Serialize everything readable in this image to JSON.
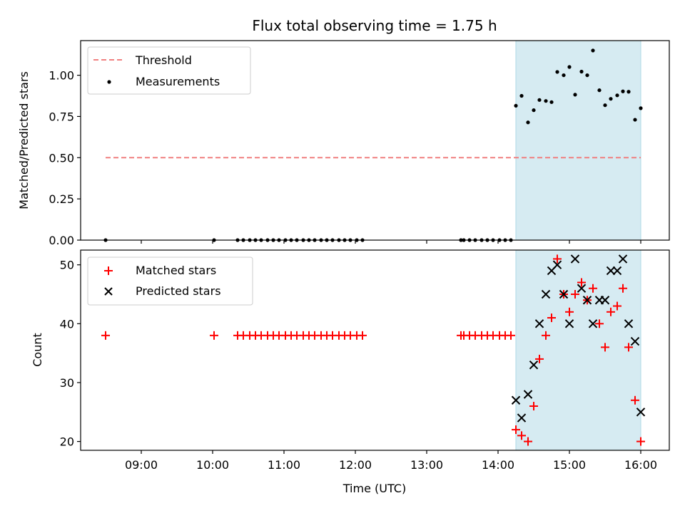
{
  "chart_data": [
    {
      "type": "scatter",
      "title": "Flux total observing time = 1.75 h",
      "xlabel": "",
      "ylabel": "Matched/Predicted stars",
      "xlim": [
        8.15,
        16.4
      ],
      "ylim": [
        0,
        1.21
      ],
      "yticks": [
        0.0,
        0.25,
        0.5,
        0.75,
        1.0
      ],
      "ytick_labels": [
        "0.00",
        "0.25",
        "0.50",
        "0.75",
        "1.00"
      ],
      "shaded_region": {
        "x_start": 14.25,
        "x_end": 16.0,
        "color": "#add8e6"
      },
      "threshold": {
        "name": "Threshold",
        "value": 0.5,
        "x_start": 8.5,
        "x_end": 16.0,
        "color": "#f08080"
      },
      "series": [
        {
          "name": "Measurements",
          "marker": "dot",
          "color": "#000000",
          "x": [
            8.5,
            10.02,
            10.35,
            10.43,
            10.52,
            10.6,
            10.68,
            10.77,
            10.85,
            10.93,
            11.02,
            11.1,
            11.18,
            11.27,
            11.35,
            11.43,
            11.52,
            11.6,
            11.68,
            11.77,
            11.85,
            11.93,
            12.02,
            12.1,
            13.48,
            13.52,
            13.6,
            13.68,
            13.77,
            13.85,
            13.93,
            14.02,
            14.1,
            14.18,
            14.25,
            14.33,
            14.42,
            14.5,
            14.58,
            14.67,
            14.75,
            14.83,
            14.92,
            15.0,
            15.08,
            15.17,
            15.25,
            15.33,
            15.42,
            15.5,
            15.58,
            15.67,
            15.75,
            15.83,
            15.92,
            16.0
          ],
          "y": [
            0,
            0,
            0,
            0,
            0,
            0,
            0,
            0,
            0,
            0,
            0,
            0,
            0,
            0,
            0,
            0,
            0,
            0,
            0,
            0,
            0,
            0,
            0,
            0,
            0,
            0,
            0,
            0,
            0,
            0,
            0,
            0,
            0,
            0,
            0.815,
            0.875,
            0.714,
            0.788,
            0.85,
            0.844,
            0.837,
            1.02,
            1.0,
            1.05,
            0.882,
            1.022,
            1.0,
            1.15,
            0.909,
            0.818,
            0.857,
            0.878,
            0.902,
            0.9,
            0.73,
            0.8
          ]
        }
      ],
      "legend": [
        "Threshold",
        "Measurements"
      ],
      "legend_position": "upper-left"
    },
    {
      "type": "scatter",
      "title": "",
      "xlabel": "Time (UTC)",
      "ylabel": "Count",
      "xlim": [
        8.15,
        16.4
      ],
      "ylim": [
        18.5,
        52.5
      ],
      "xticks": [
        9,
        10,
        11,
        12,
        13,
        14,
        15,
        16
      ],
      "xtick_labels": [
        "09:00",
        "10:00",
        "11:00",
        "12:00",
        "13:00",
        "14:00",
        "15:00",
        "16:00"
      ],
      "yticks": [
        20,
        30,
        40,
        50
      ],
      "ytick_labels": [
        "20",
        "30",
        "40",
        "50"
      ],
      "shaded_region": {
        "x_start": 14.25,
        "x_end": 16.0,
        "color": "#add8e6"
      },
      "series": [
        {
          "name": "Matched stars",
          "marker": "plus",
          "color": "#ff0000",
          "x": [
            8.5,
            10.02,
            10.35,
            10.43,
            10.52,
            10.6,
            10.68,
            10.77,
            10.85,
            10.93,
            11.02,
            11.1,
            11.18,
            11.27,
            11.35,
            11.43,
            11.52,
            11.6,
            11.68,
            11.77,
            11.85,
            11.93,
            12.02,
            12.1,
            13.48,
            13.52,
            13.6,
            13.68,
            13.77,
            13.85,
            13.93,
            14.02,
            14.1,
            14.18,
            14.25,
            14.33,
            14.42,
            14.5,
            14.58,
            14.67,
            14.75,
            14.83,
            14.92,
            15.0,
            15.08,
            15.17,
            15.25,
            15.33,
            15.42,
            15.5,
            15.58,
            15.67,
            15.75,
            15.83,
            15.92,
            16.0
          ],
          "y": [
            38,
            38,
            38,
            38,
            38,
            38,
            38,
            38,
            38,
            38,
            38,
            38,
            38,
            38,
            38,
            38,
            38,
            38,
            38,
            38,
            38,
            38,
            38,
            38,
            38,
            38,
            38,
            38,
            38,
            38,
            38,
            38,
            38,
            38,
            22,
            21,
            20,
            26,
            34,
            38,
            41,
            51,
            45,
            42,
            45,
            47,
            44,
            46,
            40,
            36,
            42,
            43,
            46,
            36,
            27,
            20
          ]
        },
        {
          "name": "Predicted stars",
          "marker": "x",
          "color": "#000000",
          "x": [
            14.25,
            14.33,
            14.42,
            14.5,
            14.58,
            14.67,
            14.75,
            14.83,
            14.92,
            15.0,
            15.08,
            15.17,
            15.25,
            15.33,
            15.42,
            15.5,
            15.58,
            15.67,
            15.75,
            15.83,
            15.92,
            16.0
          ],
          "y": [
            27,
            24,
            28,
            33,
            40,
            45,
            49,
            50,
            45,
            40,
            51,
            46,
            44,
            40,
            44,
            44,
            49,
            49,
            51,
            40,
            37,
            25
          ]
        }
      ],
      "legend": [
        "Matched stars",
        "Predicted stars"
      ],
      "legend_position": "upper-left"
    }
  ]
}
